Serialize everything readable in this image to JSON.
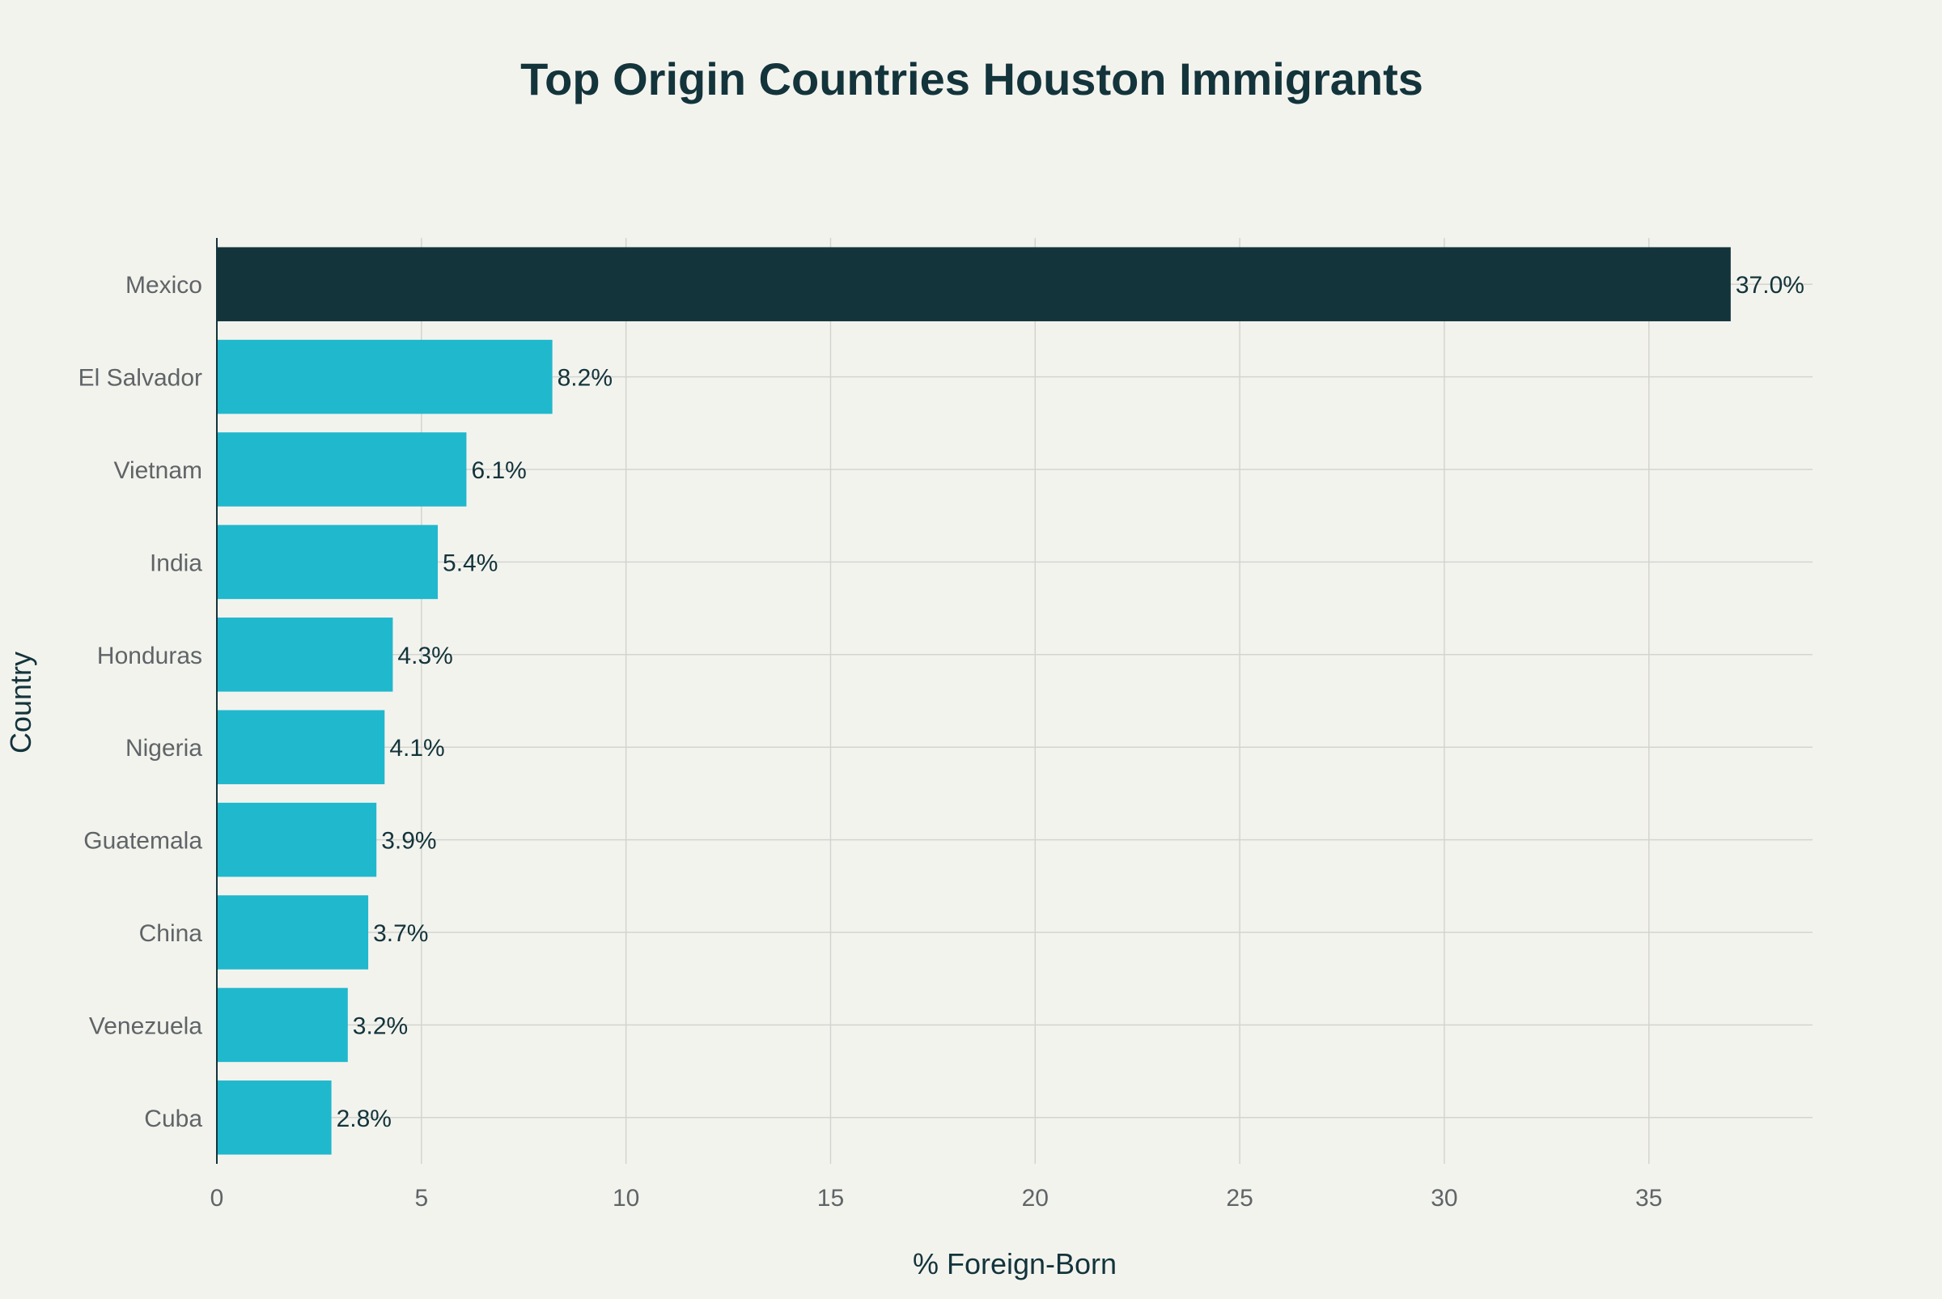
{
  "chart_data": {
    "type": "bar",
    "orientation": "horizontal",
    "title": "Top Origin Countries Houston Immigrants",
    "xlabel": "% Foreign-Born",
    "ylabel": "Country",
    "categories": [
      "Mexico",
      "El Salvador",
      "Vietnam",
      "India",
      "Honduras",
      "Nigeria",
      "Guatemala",
      "China",
      "Venezuela",
      "Cuba"
    ],
    "values": [
      37.0,
      8.2,
      6.1,
      5.4,
      4.3,
      4.1,
      3.9,
      3.7,
      3.2,
      2.8
    ],
    "data_labels": [
      "37.0%",
      "8.2%",
      "6.1%",
      "5.4%",
      "4.3%",
      "4.1%",
      "3.9%",
      "3.7%",
      "3.2%",
      "2.8%"
    ],
    "xlim": [
      0,
      39
    ],
    "xticks": [
      0,
      5,
      10,
      15,
      20,
      25,
      30,
      35
    ],
    "grid": true,
    "legend": "none",
    "colors": {
      "highlight": "#13343b",
      "default": "#20b8cd",
      "background": "#f3f3ee",
      "grid": "#d3d4d0",
      "text": "#13343b",
      "tick_text": "#5f6467"
    }
  }
}
